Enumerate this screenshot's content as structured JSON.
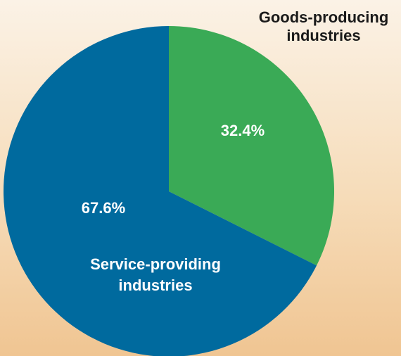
{
  "chart_data": {
    "type": "pie",
    "title": "",
    "slices": [
      {
        "name_lines": [
          "Goods-producing",
          "industries"
        ],
        "value": 32.4,
        "value_label": "32.4%",
        "color": "#3aaa56"
      },
      {
        "name_lines": [
          "Service-providing",
          "industries"
        ],
        "value": 67.6,
        "value_label": "67.6%",
        "color": "#006a9e"
      }
    ],
    "start_angle": "12 o'clock",
    "direction": "clockwise",
    "legend": "none"
  },
  "colors": {
    "background_top": "#fbf2e6",
    "background_bottom": "#f0c592",
    "goods": "#3aaa56",
    "services": "#006a9e"
  }
}
